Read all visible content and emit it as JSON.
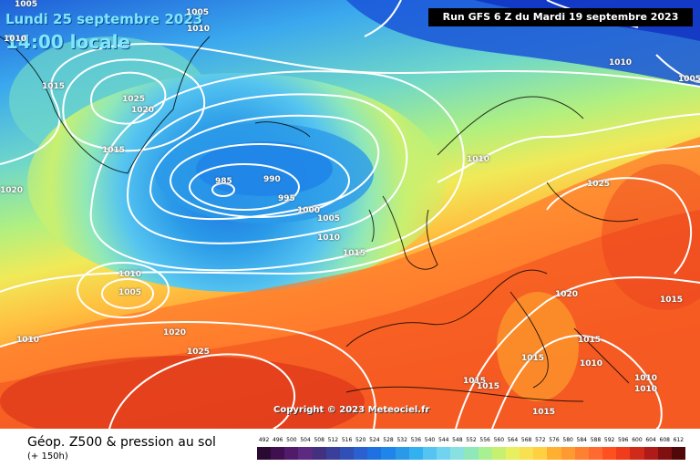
{
  "header": {
    "date": "Lundi 25 septembre 2023",
    "time": "14:00 locale",
    "run": "Run GFS 6 Z du Mardi 19 septembre 2023"
  },
  "copyright": "Copyright © 2023 Meteociel.fr",
  "legend": {
    "title": "Géop. Z500 & pression au sol",
    "subtitle": "(+ 150h)",
    "scale_values": [
      "492",
      "496",
      "500",
      "504",
      "508",
      "512",
      "516",
      "520",
      "524",
      "528",
      "532",
      "536",
      "540",
      "544",
      "548",
      "552",
      "556",
      "560",
      "564",
      "568",
      "572",
      "576",
      "580",
      "584",
      "588",
      "592",
      "596",
      "600",
      "604",
      "608",
      "612"
    ],
    "scale_colors": [
      "#2a0a33",
      "#3f0f4f",
      "#521a6b",
      "#5c2a80",
      "#443080",
      "#3a3f9a",
      "#3050b5",
      "#2a60d0",
      "#1f70e0",
      "#1f85e8",
      "#2a9ae8",
      "#33b0ee",
      "#55c4f0",
      "#70d4f0",
      "#88e0e0",
      "#90e8b8",
      "#a8f090",
      "#c8f070",
      "#e8f060",
      "#f8e050",
      "#ffd040",
      "#ffb030",
      "#ff9a30",
      "#ff8030",
      "#ff6a30",
      "#ff5020",
      "#f03c1c",
      "#d02a1a",
      "#b01a18",
      "#801010",
      "#500808"
    ]
  },
  "isobar_labels": [
    {
      "text": "985"
    },
    {
      "text": "990"
    },
    {
      "text": "995"
    },
    {
      "text": "1000"
    },
    {
      "text": "1005"
    },
    {
      "text": "1010"
    },
    {
      "text": "1015"
    },
    {
      "text": "1025"
    },
    {
      "text": "1020"
    },
    {
      "text": "1015"
    },
    {
      "text": "1020"
    },
    {
      "text": "1010"
    },
    {
      "text": "1005"
    },
    {
      "text": "1010"
    },
    {
      "text": "1020"
    },
    {
      "text": "1025"
    },
    {
      "text": "1010"
    },
    {
      "text": "1025"
    },
    {
      "text": "1020"
    },
    {
      "text": "1015"
    },
    {
      "text": "1015"
    },
    {
      "text": "1010"
    },
    {
      "text": "1015"
    },
    {
      "text": "1010"
    },
    {
      "text": "1015"
    },
    {
      "text": "1015"
    },
    {
      "text": "1015"
    },
    {
      "text": "1010"
    },
    {
      "text": "1005"
    },
    {
      "text": "1010"
    },
    {
      "text": "1010"
    },
    {
      "text": "1005"
    },
    {
      "text": "1005"
    },
    {
      "text": "1010"
    },
    {
      "text": "1015"
    }
  ]
}
